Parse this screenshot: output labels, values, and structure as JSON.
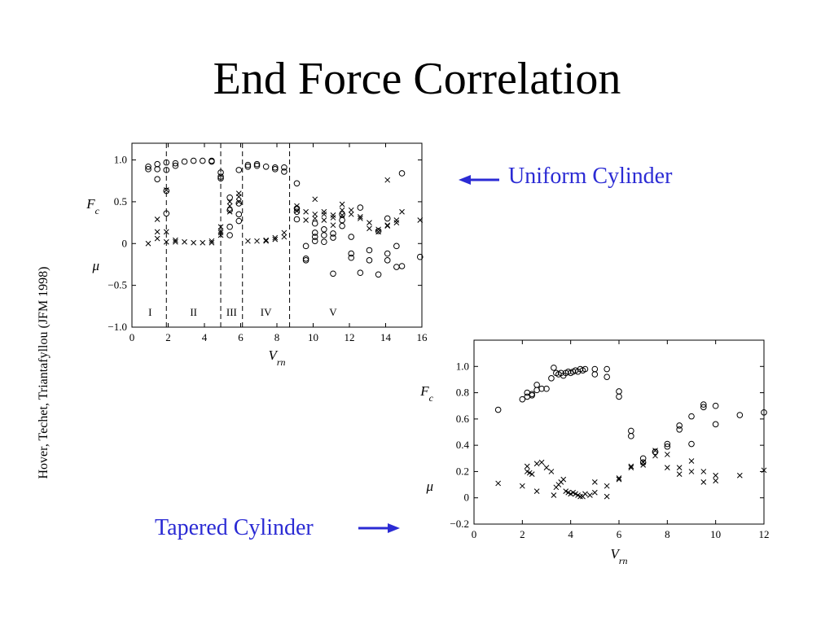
{
  "title": "End Force Correlation",
  "citation": "Hover, Techet, Triantafyllou (JFM 1998)",
  "callouts": {
    "uniform": "Uniform Cylinder",
    "tapered": "Tapered Cylinder"
  },
  "colors": {
    "callout": "#2b2bd4",
    "axes": "#000000"
  },
  "chart_data": [
    {
      "type": "scatter",
      "title": "Uniform Cylinder",
      "xlabel": "V_rn",
      "ylabels": [
        "F_c",
        "μ"
      ],
      "xlim": [
        0,
        16
      ],
      "ylim": [
        -1.0,
        1.2
      ],
      "xticks": [
        0,
        2,
        4,
        6,
        8,
        10,
        12,
        14,
        16
      ],
      "yticks": [
        -1.0,
        -0.5,
        0,
        0.5,
        1.0
      ],
      "xtick_labels": [
        "0",
        "2",
        "4",
        "6",
        "8",
        "10",
        "12",
        "14",
        "16"
      ],
      "ytick_labels": [
        "−1.0",
        "−0.5",
        "0",
        "0.5",
        "1.0"
      ],
      "grid": false,
      "regions": {
        "boundaries": [
          1.9,
          4.9,
          6.1,
          8.7
        ],
        "labels": [
          {
            "text": "I",
            "x": 1.0
          },
          {
            "text": "II",
            "x": 3.4
          },
          {
            "text": "III",
            "x": 5.5
          },
          {
            "text": "IV",
            "x": 7.4
          },
          {
            "text": "V",
            "x": 11.1
          }
        ]
      },
      "series": [
        {
          "name": "F_c",
          "marker": "circle",
          "points": [
            [
              0.9,
              0.92
            ],
            [
              0.9,
              0.89
            ],
            [
              1.4,
              0.95
            ],
            [
              1.4,
              0.89
            ],
            [
              1.4,
              0.77
            ],
            [
              1.9,
              0.97
            ],
            [
              1.9,
              0.88
            ],
            [
              1.9,
              0.63
            ],
            [
              1.9,
              0.36
            ],
            [
              2.4,
              0.96
            ],
            [
              2.4,
              0.93
            ],
            [
              2.9,
              0.98
            ],
            [
              3.4,
              0.99
            ],
            [
              3.9,
              0.99
            ],
            [
              4.4,
              0.98
            ],
            [
              4.4,
              0.99
            ],
            [
              4.9,
              0.85
            ],
            [
              4.9,
              0.8
            ],
            [
              4.9,
              0.78
            ],
            [
              5.4,
              0.55
            ],
            [
              5.4,
              0.4
            ],
            [
              5.4,
              0.2
            ],
            [
              5.4,
              0.1
            ],
            [
              5.9,
              0.88
            ],
            [
              5.9,
              0.48
            ],
            [
              5.9,
              0.35
            ],
            [
              5.9,
              0.27
            ],
            [
              6.4,
              0.94
            ],
            [
              6.4,
              0.92
            ],
            [
              6.9,
              0.93
            ],
            [
              6.9,
              0.95
            ],
            [
              7.4,
              0.92
            ],
            [
              7.9,
              0.91
            ],
            [
              7.9,
              0.89
            ],
            [
              8.4,
              0.91
            ],
            [
              8.4,
              0.86
            ],
            [
              9.1,
              0.72
            ],
            [
              9.1,
              0.42
            ],
            [
              9.1,
              0.38
            ],
            [
              9.1,
              0.29
            ],
            [
              9.6,
              -0.03
            ],
            [
              9.6,
              -0.18
            ],
            [
              9.6,
              -0.2
            ],
            [
              10.1,
              0.08
            ],
            [
              10.1,
              0.03
            ],
            [
              10.1,
              0.13
            ],
            [
              10.1,
              0.24
            ],
            [
              10.6,
              0.1
            ],
            [
              10.6,
              0.17
            ],
            [
              10.6,
              0.02
            ],
            [
              11.1,
              0.07
            ],
            [
              11.1,
              0.12
            ],
            [
              11.1,
              -0.36
            ],
            [
              11.6,
              0.21
            ],
            [
              11.6,
              0.35
            ],
            [
              11.6,
              0.28
            ],
            [
              12.1,
              0.08
            ],
            [
              12.1,
              -0.12
            ],
            [
              12.1,
              -0.17
            ],
            [
              12.6,
              0.43
            ],
            [
              12.6,
              -0.35
            ],
            [
              13.1,
              -0.08
            ],
            [
              13.1,
              -0.2
            ],
            [
              13.6,
              0.15
            ],
            [
              13.6,
              -0.37
            ],
            [
              14.1,
              0.3
            ],
            [
              14.1,
              -0.12
            ],
            [
              14.1,
              -0.2
            ],
            [
              14.6,
              -0.03
            ],
            [
              14.6,
              -0.28
            ],
            [
              14.9,
              0.84
            ],
            [
              14.9,
              -0.27
            ],
            [
              15.9,
              -0.16
            ]
          ]
        },
        {
          "name": "μ",
          "marker": "cross",
          "points": [
            [
              0.9,
              0.0
            ],
            [
              1.4,
              0.29
            ],
            [
              1.4,
              0.14
            ],
            [
              1.4,
              0.06
            ],
            [
              1.9,
              0.64
            ],
            [
              1.9,
              0.14
            ],
            [
              1.9,
              0.02
            ],
            [
              2.4,
              0.02
            ],
            [
              2.4,
              0.04
            ],
            [
              2.9,
              0.02
            ],
            [
              3.4,
              0.01
            ],
            [
              3.9,
              0.01
            ],
            [
              4.4,
              0.01
            ],
            [
              4.4,
              0.03
            ],
            [
              4.9,
              0.2
            ],
            [
              4.9,
              0.15
            ],
            [
              4.9,
              0.13
            ],
            [
              4.9,
              0.1
            ],
            [
              5.4,
              0.5
            ],
            [
              5.4,
              0.45
            ],
            [
              5.4,
              0.38
            ],
            [
              5.9,
              0.6
            ],
            [
              5.9,
              0.56
            ],
            [
              5.9,
              0.5
            ],
            [
              6.4,
              0.03
            ],
            [
              6.9,
              0.03
            ],
            [
              7.4,
              0.03
            ],
            [
              7.4,
              0.04
            ],
            [
              7.9,
              0.05
            ],
            [
              7.9,
              0.07
            ],
            [
              8.4,
              0.08
            ],
            [
              8.4,
              0.13
            ],
            [
              9.1,
              0.45
            ],
            [
              9.1,
              0.39
            ],
            [
              9.6,
              0.38
            ],
            [
              9.6,
              0.28
            ],
            [
              10.1,
              0.53
            ],
            [
              10.1,
              0.35
            ],
            [
              10.1,
              0.3
            ],
            [
              10.6,
              0.28
            ],
            [
              10.6,
              0.35
            ],
            [
              10.6,
              0.38
            ],
            [
              11.1,
              0.22
            ],
            [
              11.1,
              0.31
            ],
            [
              11.1,
              0.34
            ],
            [
              11.6,
              0.47
            ],
            [
              11.6,
              0.4
            ],
            [
              11.6,
              0.34
            ],
            [
              12.1,
              0.4
            ],
            [
              12.1,
              0.35
            ],
            [
              12.6,
              0.3
            ],
            [
              12.6,
              0.32
            ],
            [
              13.1,
              0.18
            ],
            [
              13.1,
              0.25
            ],
            [
              13.6,
              0.14
            ],
            [
              13.6,
              0.17
            ],
            [
              14.1,
              0.21
            ],
            [
              14.1,
              0.22
            ],
            [
              14.6,
              0.25
            ],
            [
              14.6,
              0.28
            ],
            [
              14.9,
              0.38
            ],
            [
              14.1,
              0.76
            ],
            [
              15.9,
              0.28
            ]
          ]
        }
      ]
    },
    {
      "type": "scatter",
      "title": "Tapered Cylinder",
      "xlabel": "V_rn",
      "ylabels": [
        "F_c",
        "μ"
      ],
      "xlim": [
        0,
        12
      ],
      "ylim": [
        -0.2,
        1.2
      ],
      "xticks": [
        0,
        2,
        4,
        6,
        8,
        10,
        12
      ],
      "yticks": [
        -0.2,
        0,
        0.2,
        0.4,
        0.6,
        0.8,
        1.0
      ],
      "xtick_labels": [
        "0",
        "2",
        "4",
        "6",
        "8",
        "10",
        "12"
      ],
      "ytick_labels": [
        "−0.2",
        "0",
        "0.2",
        "0.4",
        "0.6",
        "0.8",
        "1.0"
      ],
      "grid": false,
      "series": [
        {
          "name": "F_c",
          "marker": "circle",
          "points": [
            [
              1.0,
              0.67
            ],
            [
              2.0,
              0.75
            ],
            [
              2.2,
              0.8
            ],
            [
              2.2,
              0.77
            ],
            [
              2.4,
              0.79
            ],
            [
              2.4,
              0.78
            ],
            [
              2.6,
              0.86
            ],
            [
              2.6,
              0.82
            ],
            [
              2.8,
              0.83
            ],
            [
              3.0,
              0.83
            ],
            [
              3.2,
              0.91
            ],
            [
              3.3,
              0.99
            ],
            [
              3.4,
              0.95
            ],
            [
              3.5,
              0.94
            ],
            [
              3.6,
              0.95
            ],
            [
              3.7,
              0.93
            ],
            [
              3.8,
              0.95
            ],
            [
              3.9,
              0.96
            ],
            [
              4.0,
              0.95
            ],
            [
              4.1,
              0.96
            ],
            [
              4.2,
              0.97
            ],
            [
              4.3,
              0.96
            ],
            [
              4.4,
              0.98
            ],
            [
              4.5,
              0.97
            ],
            [
              4.6,
              0.98
            ],
            [
              5.0,
              0.98
            ],
            [
              5.0,
              0.94
            ],
            [
              5.5,
              0.98
            ],
            [
              5.5,
              0.92
            ],
            [
              6.0,
              0.81
            ],
            [
              6.0,
              0.77
            ],
            [
              6.5,
              0.51
            ],
            [
              6.5,
              0.47
            ],
            [
              7.0,
              0.3
            ],
            [
              7.0,
              0.27
            ],
            [
              7.5,
              0.35
            ],
            [
              7.5,
              0.35
            ],
            [
              8.0,
              0.41
            ],
            [
              8.0,
              0.39
            ],
            [
              8.5,
              0.55
            ],
            [
              8.5,
              0.52
            ],
            [
              9.0,
              0.62
            ],
            [
              9.0,
              0.41
            ],
            [
              9.5,
              0.71
            ],
            [
              9.5,
              0.69
            ],
            [
              10.0,
              0.7
            ],
            [
              10.0,
              0.56
            ],
            [
              11.0,
              0.63
            ],
            [
              12.0,
              0.65
            ]
          ]
        },
        {
          "name": "μ",
          "marker": "cross",
          "points": [
            [
              1.0,
              0.11
            ],
            [
              2.0,
              0.09
            ],
            [
              2.2,
              0.24
            ],
            [
              2.2,
              0.2
            ],
            [
              2.3,
              0.19
            ],
            [
              2.4,
              0.18
            ],
            [
              2.6,
              0.26
            ],
            [
              2.6,
              0.05
            ],
            [
              2.8,
              0.27
            ],
            [
              3.0,
              0.23
            ],
            [
              3.2,
              0.2
            ],
            [
              3.3,
              0.02
            ],
            [
              3.4,
              0.08
            ],
            [
              3.5,
              0.1
            ],
            [
              3.6,
              0.12
            ],
            [
              3.7,
              0.14
            ],
            [
              3.8,
              0.05
            ],
            [
              3.9,
              0.04
            ],
            [
              4.0,
              0.03
            ],
            [
              4.1,
              0.04
            ],
            [
              4.2,
              0.03
            ],
            [
              4.3,
              0.02
            ],
            [
              4.4,
              0.01
            ],
            [
              4.5,
              0.01
            ],
            [
              4.6,
              0.03
            ],
            [
              4.8,
              0.02
            ],
            [
              5.0,
              0.04
            ],
            [
              5.0,
              0.12
            ],
            [
              5.5,
              0.09
            ],
            [
              5.5,
              0.01
            ],
            [
              6.0,
              0.14
            ],
            [
              6.0,
              0.15
            ],
            [
              6.5,
              0.23
            ],
            [
              6.5,
              0.24
            ],
            [
              7.0,
              0.27
            ],
            [
              7.0,
              0.25
            ],
            [
              7.5,
              0.32
            ],
            [
              7.5,
              0.36
            ],
            [
              8.0,
              0.33
            ],
            [
              8.0,
              0.23
            ],
            [
              8.5,
              0.23
            ],
            [
              8.5,
              0.18
            ],
            [
              9.0,
              0.28
            ],
            [
              9.0,
              0.2
            ],
            [
              9.5,
              0.2
            ],
            [
              9.5,
              0.12
            ],
            [
              10.0,
              0.17
            ],
            [
              10.0,
              0.13
            ],
            [
              11.0,
              0.17
            ],
            [
              12.0,
              0.21
            ]
          ]
        }
      ]
    }
  ]
}
